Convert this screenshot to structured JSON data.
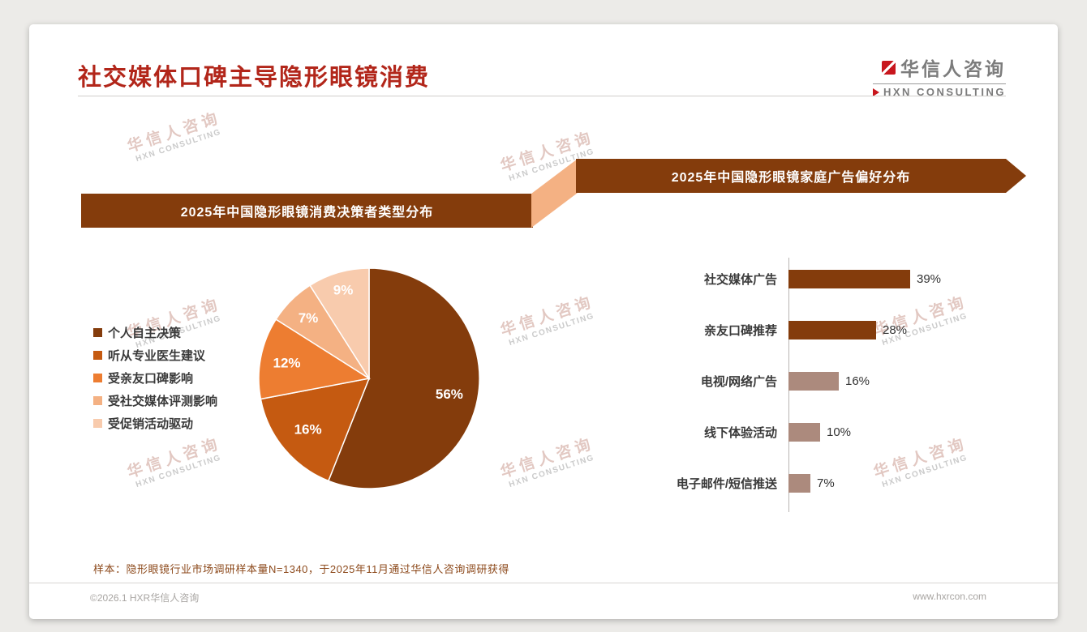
{
  "page": {
    "title": "社交媒体口碑主导隐形眼镜消费",
    "footer_note": "样本：隐形眼镜行业市场调研样本量N=1340，于2025年11月通过华信人咨询调研获得",
    "copyright": "©2026.1 HXR华信人咨询",
    "website": "www.hxrcon.com"
  },
  "logo": {
    "name_cn": "华信人咨询",
    "name_en": "HXN CONSULTING"
  },
  "watermark": {
    "line1": "华信人咨询",
    "line2": "HXN CONSULTING"
  },
  "banners": {
    "left": "2025年中国隐形眼镜消费决策者类型分布",
    "right": "2025年中国隐形眼镜家庭广告偏好分布"
  },
  "colors": {
    "title_red": "#b2261a",
    "banner_brown": "#843C0C",
    "connector_orange": "#F4B183",
    "bar_muted_brown": "#AC8A7D",
    "logo_red": "#c8161d"
  },
  "chart_data": [
    {
      "type": "pie",
      "title": "2025年中国隐形眼镜消费决策者类型分布",
      "labels": [
        "个人自主决策",
        "听从专业医生建议",
        "受亲友口碑影响",
        "受社交媒体评测影响",
        "受促销活动驱动"
      ],
      "values": [
        56,
        16,
        12,
        7,
        9
      ],
      "value_labels": [
        "56%",
        "16%",
        "12%",
        "7%",
        "9%"
      ],
      "colors": [
        "#843C0C",
        "#C55A11",
        "#ED7D31",
        "#F4B183",
        "#F8CBAD"
      ],
      "label_colors": [
        "#ffffff",
        "#ffffff",
        "#ffffff",
        "#ffffff",
        "#ffffff"
      ],
      "label_radius": [
        0.74,
        0.72,
        0.76,
        0.78,
        0.84
      ],
      "start_angle_deg": 0,
      "legend_position": "left"
    },
    {
      "type": "bar",
      "orientation": "horizontal",
      "title": "2025年中国隐形眼镜家庭广告偏好分布",
      "categories": [
        "社交媒体广告",
        "亲友口碑推荐",
        "电视/网络广告",
        "线下体验活动",
        "电子邮件/短信推送"
      ],
      "values": [
        39,
        28,
        16,
        10,
        7
      ],
      "value_labels": [
        "39%",
        "28%",
        "16%",
        "10%",
        "7%"
      ],
      "colors": [
        "#843C0C",
        "#843C0C",
        "#AC8A7D",
        "#AC8A7D",
        "#AC8A7D"
      ],
      "xlabel": "",
      "ylabel": "",
      "xlim": [
        0,
        42
      ],
      "grid": false,
      "legend_position": "none"
    }
  ]
}
